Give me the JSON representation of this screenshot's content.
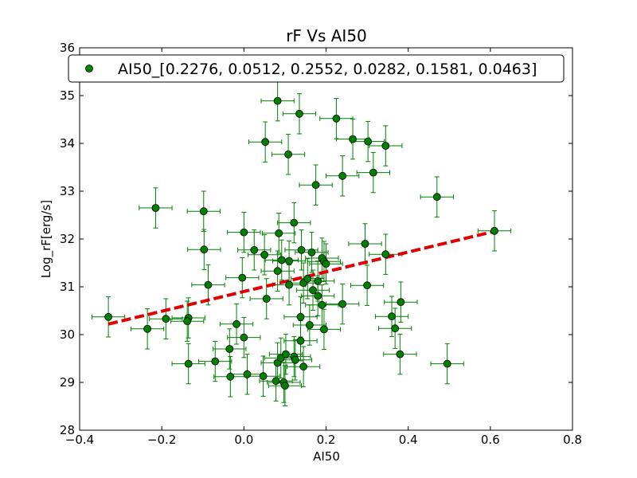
{
  "chart_data": {
    "type": "scatter",
    "title": "rF Vs AI50",
    "xlabel": "AI50",
    "ylabel": "Log_rF[erg/s]",
    "xlim": [
      -0.4,
      0.8
    ],
    "ylim": [
      28,
      36
    ],
    "xticks": [
      -0.4,
      -0.2,
      0.0,
      0.2,
      0.4,
      0.6,
      0.8
    ],
    "xtick_labels": [
      "−0.4",
      "−0.2",
      "0.0",
      "0.2",
      "0.4",
      "0.6",
      "0.8"
    ],
    "yticks": [
      28,
      29,
      30,
      31,
      32,
      33,
      34,
      35,
      36
    ],
    "ytick_labels": [
      "28",
      "29",
      "30",
      "31",
      "32",
      "33",
      "34",
      "35",
      "36"
    ],
    "legend": {
      "label": "AI50_[0.2276, 0.0512, 0.2552, 0.0282, 0.1581, 0.0463]",
      "position": "top"
    },
    "colors": {
      "marker": "#008000",
      "errorbar": "#008000",
      "fit": "#e00000"
    },
    "error": {
      "x": 0.04,
      "y": 0.42
    },
    "points": [
      [
        -0.33,
        30.37
      ],
      [
        -0.235,
        30.12
      ],
      [
        -0.215,
        32.65
      ],
      [
        -0.19,
        30.33
      ],
      [
        -0.135,
        30.35
      ],
      [
        -0.138,
        30.28
      ],
      [
        -0.135,
        29.39
      ],
      [
        -0.098,
        32.58
      ],
      [
        -0.097,
        31.78
      ],
      [
        -0.087,
        31.04
      ],
      [
        -0.07,
        29.44
      ],
      [
        -0.035,
        29.7
      ],
      [
        -0.033,
        29.12
      ],
      [
        -0.018,
        30.22
      ],
      [
        -0.004,
        31.19
      ],
      [
        0.0,
        32.14
      ],
      [
        0.0,
        29.94
      ],
      [
        0.008,
        29.17
      ],
      [
        0.025,
        31.77
      ],
      [
        0.047,
        29.13
      ],
      [
        0.05,
        31.67
      ],
      [
        0.052,
        34.03
      ],
      [
        0.055,
        30.75
      ],
      [
        0.078,
        29.03
      ],
      [
        0.082,
        29.41
      ],
      [
        0.082,
        34.89
      ],
      [
        0.082,
        31.33
      ],
      [
        0.085,
        32.12
      ],
      [
        0.09,
        29.51
      ],
      [
        0.092,
        31.56
      ],
      [
        0.097,
        29.0
      ],
      [
        0.1,
        28.93
      ],
      [
        0.102,
        29.59
      ],
      [
        0.108,
        33.77
      ],
      [
        0.11,
        31.54
      ],
      [
        0.11,
        31.04
      ],
      [
        0.122,
        29.54
      ],
      [
        0.122,
        32.34
      ],
      [
        0.125,
        29.47
      ],
      [
        0.135,
        34.62
      ],
      [
        0.138,
        30.37
      ],
      [
        0.138,
        29.87
      ],
      [
        0.14,
        31.77
      ],
      [
        0.145,
        31.08
      ],
      [
        0.145,
        29.33
      ],
      [
        0.155,
        31.17
      ],
      [
        0.16,
        30.2
      ],
      [
        0.165,
        31.72
      ],
      [
        0.168,
        30.93
      ],
      [
        0.175,
        33.13
      ],
      [
        0.18,
        30.81
      ],
      [
        0.18,
        31.12
      ],
      [
        0.19,
        31.6
      ],
      [
        0.19,
        30.62
      ],
      [
        0.195,
        31.53
      ],
      [
        0.195,
        30.11
      ],
      [
        0.2,
        31.48
      ],
      [
        0.225,
        34.52
      ],
      [
        0.24,
        33.32
      ],
      [
        0.24,
        30.64
      ],
      [
        0.265,
        34.09
      ],
      [
        0.295,
        31.9
      ],
      [
        0.3,
        31.03
      ],
      [
        0.302,
        34.04
      ],
      [
        0.315,
        33.39
      ],
      [
        0.345,
        31.68
      ],
      [
        0.345,
        33.95
      ],
      [
        0.36,
        30.38
      ],
      [
        0.368,
        30.13
      ],
      [
        0.38,
        29.59
      ],
      [
        0.382,
        30.68
      ],
      [
        0.47,
        32.88
      ],
      [
        0.495,
        29.39
      ],
      [
        0.61,
        32.17
      ]
    ],
    "fit_line": {
      "x": [
        -0.33,
        0.61
      ],
      "y": [
        30.22,
        32.16
      ]
    }
  }
}
